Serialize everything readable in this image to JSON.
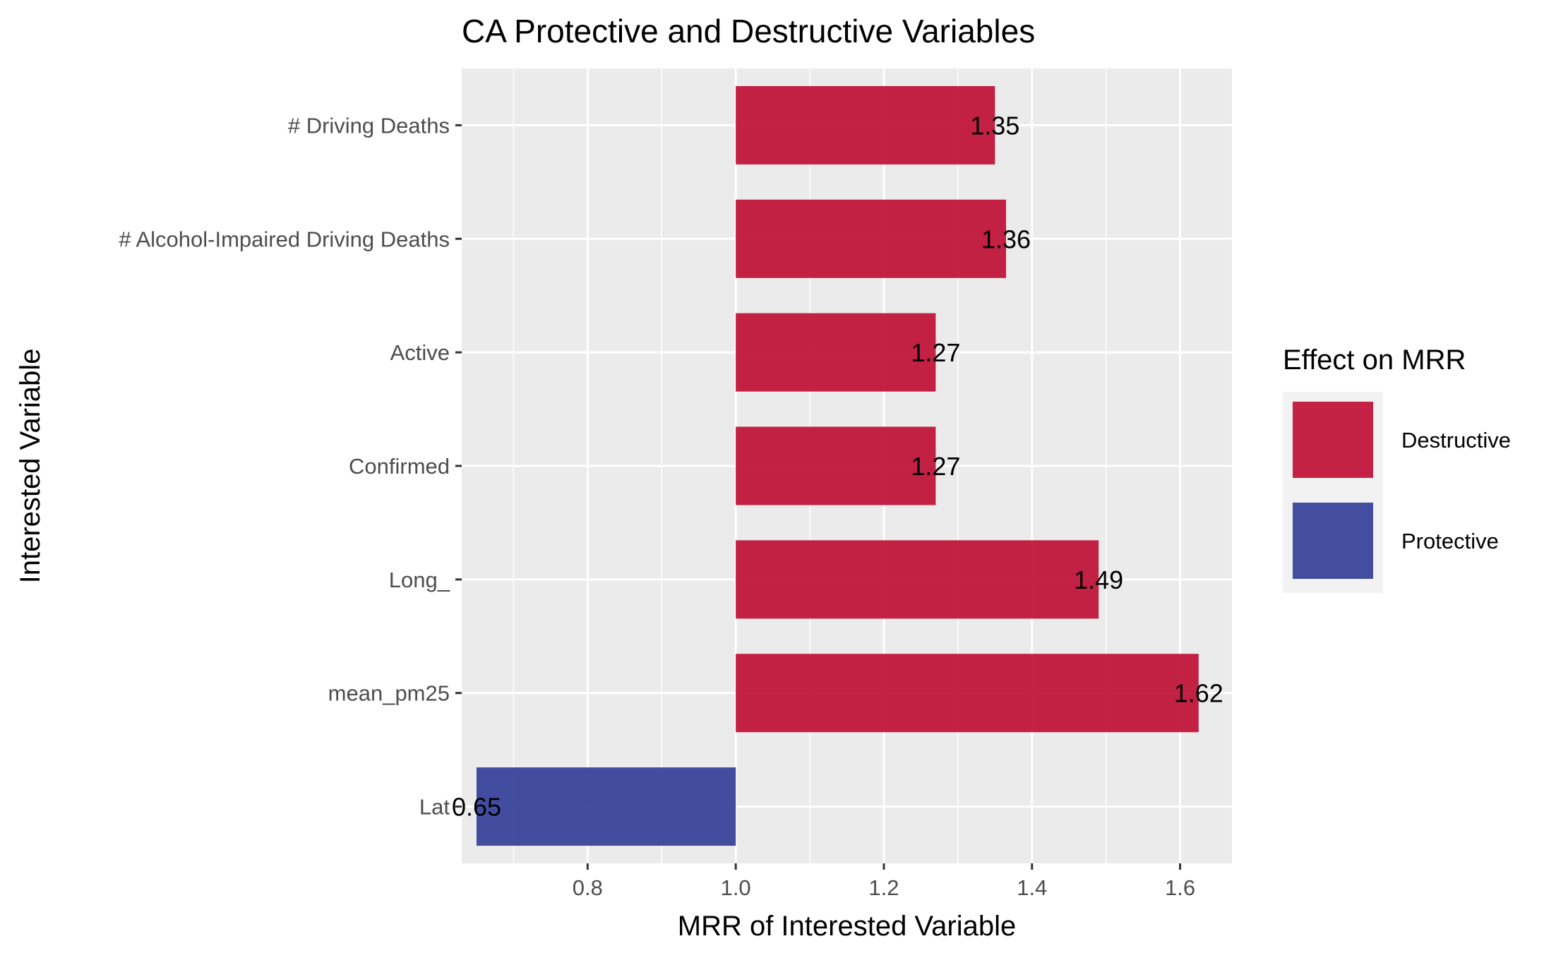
{
  "chart_data": {
    "type": "bar",
    "orientation": "horizontal",
    "title": "CA Protective and Destructive Variables",
    "xlabel": "MRR of Interested Variable",
    "ylabel": "Interested Variable",
    "baseline": 1.0,
    "xlim": [
      0.63,
      1.67
    ],
    "xticks": [
      0.8,
      1.0,
      1.2,
      1.4,
      1.6
    ],
    "xtick_labels": [
      "0.8",
      "1.0",
      "1.2",
      "1.4",
      "1.6"
    ],
    "categories": [
      "# Driving Deaths",
      "# Alcohol-Impaired Driving Deaths",
      "Active",
      "Confirmed",
      "Long_",
      "mean_pm25",
      "Lat"
    ],
    "values": [
      1.35,
      1.365,
      1.27,
      1.27,
      1.49,
      1.625,
      0.65
    ],
    "value_labels": [
      "1.35",
      "1.36",
      "1.27",
      "1.27",
      "1.49",
      "1.62",
      "0.65"
    ],
    "effects": [
      "Destructive",
      "Destructive",
      "Destructive",
      "Destructive",
      "Destructive",
      "Destructive",
      "Protective"
    ],
    "grid": true,
    "legend": {
      "title": "Effect on MRR",
      "position": "right",
      "entries": [
        {
          "label": "Destructive",
          "color": "#c0163a"
        },
        {
          "label": "Protective",
          "color": "#3a449c"
        }
      ]
    },
    "panel_color": "#ebebeb",
    "grid_color": "#ffffff"
  }
}
